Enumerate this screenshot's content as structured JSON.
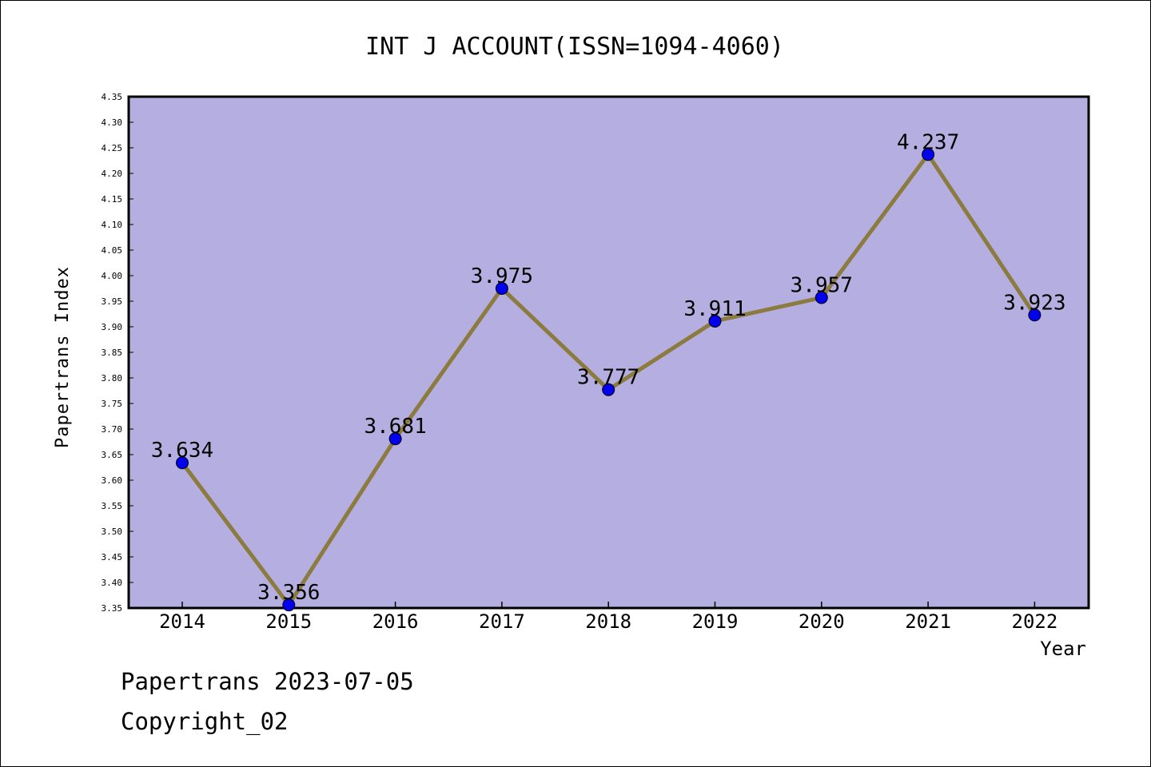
{
  "chart_data": {
    "type": "line",
    "title": "INT J ACCOUNT(ISSN=1094-4060)",
    "xlabel": "Year",
    "ylabel": "Papertrans Index",
    "categories": [
      "2014",
      "2015",
      "2016",
      "2017",
      "2018",
      "2019",
      "2020",
      "2021",
      "2022"
    ],
    "values": [
      3.634,
      3.356,
      3.681,
      3.975,
      3.777,
      3.911,
      3.957,
      4.237,
      3.923
    ],
    "data_labels": [
      "3.634",
      "3.356",
      "3.681",
      "3.975",
      "3.777",
      "3.911",
      "3.957",
      "4.237",
      "3.923"
    ],
    "ylim": [
      3.35,
      4.35
    ],
    "ytick_step": 0.05,
    "ytick_labels": [
      "3.35",
      "3.40",
      "3.45",
      "3.50",
      "3.55",
      "3.60",
      "3.65",
      "3.70",
      "3.75",
      "3.80",
      "3.85",
      "3.90",
      "3.95",
      "4.00",
      "4.05",
      "4.10",
      "4.15",
      "4.20",
      "4.25",
      "4.30",
      "4.35"
    ],
    "grid": false,
    "legend": "none",
    "colors": {
      "plot_background": "#b5aee1",
      "line": "#8b7b3e",
      "marker": "#0000ee",
      "frame": "#000000"
    }
  },
  "footer": {
    "line1": "Papertrans 2023-07-05",
    "line2": "Copyright_02"
  }
}
